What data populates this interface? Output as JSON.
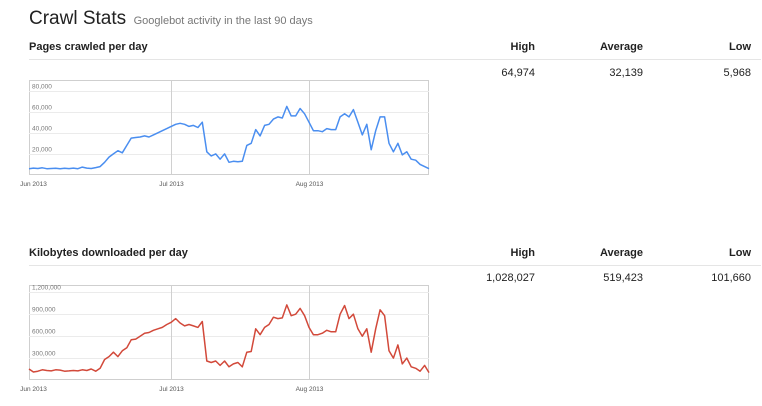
{
  "header": {
    "title": "Crawl Stats",
    "subtitle": "Googlebot activity in the last 90 days"
  },
  "stats_labels": {
    "high": "High",
    "average": "Average",
    "low": "Low"
  },
  "sections": [
    {
      "title": "Pages crawled per day",
      "high": "64,974",
      "average": "32,139",
      "low": "5,968",
      "color": "#4a8ef0"
    },
    {
      "title": "Kilobytes downloaded per day",
      "high": "1,028,027",
      "average": "519,423",
      "low": "101,660",
      "color": "#d2493a"
    }
  ],
  "chart_data": [
    {
      "type": "line",
      "title": "Pages crawled per day",
      "x_ticks": [
        "Jun 2013",
        "Jul 2013",
        "Aug 2013"
      ],
      "x_tick_index": [
        1,
        32,
        63
      ],
      "y_ticks": [
        20000,
        40000,
        60000,
        80000
      ],
      "y_tick_labels": [
        "20,000",
        "40,000",
        "60,000",
        "80,000"
      ],
      "ylim": [
        0,
        90000
      ],
      "grid": true,
      "series": [
        {
          "color": "#4a8ef0",
          "values": [
            6000,
            6500,
            6200,
            6800,
            6000,
            6200,
            6300,
            6000,
            6400,
            6100,
            6500,
            6000,
            7500,
            6500,
            6200,
            7000,
            8000,
            12000,
            17000,
            20000,
            23000,
            21000,
            28000,
            35000,
            35500,
            36000,
            37000,
            36000,
            38000,
            40000,
            42000,
            44000,
            46000,
            48000,
            49000,
            48000,
            46000,
            47000,
            45000,
            50000,
            22000,
            18000,
            20000,
            15000,
            20000,
            12000,
            13000,
            12500,
            13000,
            28000,
            30000,
            43000,
            37000,
            47000,
            48000,
            53000,
            55000,
            54000,
            64974,
            56000,
            56000,
            63000,
            58000,
            50000,
            42000,
            42000,
            41000,
            44000,
            43000,
            43000,
            55000,
            58000,
            55000,
            62000,
            50000,
            38000,
            48000,
            24000,
            42000,
            55000,
            55000,
            30000,
            22000,
            30000,
            19000,
            22000,
            15000,
            14000,
            10000,
            8000,
            5968
          ]
        }
      ]
    },
    {
      "type": "line",
      "title": "Kilobytes downloaded per day",
      "x_ticks": [
        "Jun 2013",
        "Jul 2013",
        "Aug 2013"
      ],
      "x_tick_index": [
        1,
        32,
        63
      ],
      "y_ticks": [
        300000,
        600000,
        900000,
        1200000
      ],
      "y_tick_labels": [
        "300,000",
        "600,000",
        "900,000",
        "1,200,000"
      ],
      "ylim": [
        0,
        1300000
      ],
      "grid": true,
      "series": [
        {
          "color": "#d2493a",
          "values": [
            150000,
            110000,
            120000,
            140000,
            130000,
            125000,
            140000,
            135000,
            120000,
            125000,
            130000,
            125000,
            140000,
            130000,
            150000,
            120000,
            160000,
            280000,
            320000,
            380000,
            320000,
            400000,
            440000,
            550000,
            560000,
            600000,
            640000,
            650000,
            680000,
            700000,
            720000,
            760000,
            790000,
            840000,
            780000,
            740000,
            760000,
            740000,
            720000,
            800000,
            260000,
            240000,
            260000,
            200000,
            260000,
            180000,
            220000,
            240000,
            180000,
            380000,
            390000,
            700000,
            620000,
            720000,
            760000,
            860000,
            840000,
            850000,
            1028027,
            880000,
            900000,
            980000,
            880000,
            720000,
            620000,
            620000,
            640000,
            680000,
            660000,
            660000,
            900000,
            1020000,
            840000,
            900000,
            700000,
            600000,
            700000,
            380000,
            700000,
            960000,
            880000,
            400000,
            300000,
            480000,
            220000,
            300000,
            180000,
            160000,
            120000,
            200000,
            101660
          ]
        }
      ]
    }
  ]
}
